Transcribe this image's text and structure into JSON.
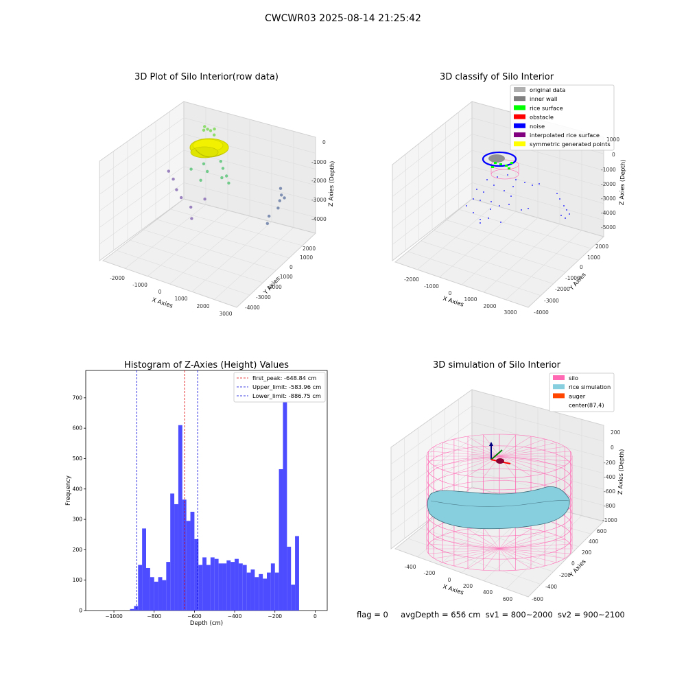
{
  "figure": {
    "suptitle": "CWCWR03 2025-08-14 21:25:42",
    "footer": {
      "flag": "flag = 0",
      "avg_depth": "avgDepth = 656 cm",
      "sv1": "sv1 = 800~2000",
      "sv2": "sv2 = 900~2100"
    }
  },
  "colors": {
    "hist_bar": "#4d4dff",
    "peak_line": "#e00000",
    "limit_line": "#0000dd",
    "silo_wire": "#ff69b4",
    "rice_sim": "#87cedf",
    "auger": "#ff4500",
    "noise": "#0000ff",
    "rice_surface": "#00ff00",
    "inner_wall": "#808080",
    "symmetric": "#ffff00"
  },
  "chart_data": [
    {
      "type": "scatter",
      "projection": "3d",
      "title": "3D Plot of Silo Interior(row data)",
      "xlabel": "X Axies",
      "ylabel": "Y Axies",
      "zlabel": "Z Axies (Depth)",
      "x_ticks": [
        "-2000",
        "-1000",
        "0",
        "1000",
        "2000",
        "3000"
      ],
      "y_ticks": [
        "-4000",
        "-3000",
        "-2000",
        "-1000",
        "0",
        "1000",
        "2000"
      ],
      "z_ticks": [
        "-4000",
        "-3000",
        "-2000",
        "-1000",
        "0"
      ],
      "xlim": [
        -2500,
        3200
      ],
      "ylim": [
        -4200,
        2600
      ],
      "zlim": [
        -4600,
        200
      ],
      "points": [
        {
          "x": -300,
          "y": 1300,
          "z": -250,
          "group": "rice"
        },
        {
          "x": -150,
          "y": 1250,
          "z": -300,
          "group": "rice"
        },
        {
          "x": 0,
          "y": 1200,
          "z": -280,
          "group": "rice"
        },
        {
          "x": 100,
          "y": 1300,
          "z": -200,
          "group": "rice"
        },
        {
          "x": -250,
          "y": 1150,
          "z": -350,
          "group": "rice"
        },
        {
          "x": 200,
          "y": 1100,
          "z": -380,
          "group": "rice"
        },
        {
          "x": 600,
          "y": 700,
          "z": -900,
          "group": "mid"
        },
        {
          "x": 800,
          "y": 500,
          "z": -1300,
          "group": "mid"
        },
        {
          "x": 1000,
          "y": 300,
          "z": -1500,
          "group": "mid"
        },
        {
          "x": 300,
          "y": 800,
          "z": -1200,
          "group": "mid"
        },
        {
          "x": 500,
          "y": 900,
          "z": -1000,
          "group": "mid"
        },
        {
          "x": -200,
          "y": 900,
          "z": -1700,
          "group": "mid"
        },
        {
          "x": 0,
          "y": 700,
          "z": -2000,
          "group": "mid"
        },
        {
          "x": 200,
          "y": 600,
          "z": -2300,
          "group": "mid"
        },
        {
          "x": 1200,
          "y": 200,
          "z": -1800,
          "group": "mid"
        },
        {
          "x": 1400,
          "y": 0,
          "z": -2000,
          "group": "mid"
        },
        {
          "x": 900,
          "y": 400,
          "z": -2200,
          "group": "mid"
        },
        {
          "x": -400,
          "y": 500,
          "z": -2400,
          "group": "mid"
        },
        {
          "x": 100,
          "y": 300,
          "z": -2700,
          "group": "mid"
        },
        {
          "x": -1200,
          "y": 300,
          "z": -2800,
          "group": "low"
        },
        {
          "x": -900,
          "y": 100,
          "z": -3000,
          "group": "low"
        },
        {
          "x": -600,
          "y": -200,
          "z": -3300,
          "group": "low"
        },
        {
          "x": -300,
          "y": -400,
          "z": -3500,
          "group": "low"
        },
        {
          "x": 200,
          "y": -600,
          "z": -3700,
          "group": "low"
        },
        {
          "x": 600,
          "y": -300,
          "z": -3200,
          "group": "low"
        },
        {
          "x": 400,
          "y": -900,
          "z": -4100,
          "group": "low"
        },
        {
          "x": 2500,
          "y": 1800,
          "z": -3000,
          "group": "wall"
        },
        {
          "x": 2700,
          "y": 1500,
          "z": -3100,
          "group": "wall"
        },
        {
          "x": 2800,
          "y": 1200,
          "z": -3200,
          "group": "wall"
        },
        {
          "x": 2900,
          "y": 900,
          "z": -3400,
          "group": "wall"
        },
        {
          "x": 2700,
          "y": 600,
          "z": -3800,
          "group": "wall"
        },
        {
          "x": 2800,
          "y": 300,
          "z": -4000,
          "group": "wall"
        },
        {
          "x": 2600,
          "y": 1900,
          "z": -3600,
          "group": "wall"
        }
      ]
    },
    {
      "type": "scatter",
      "projection": "3d",
      "title": "3D classify of Silo Interior",
      "xlabel": "X Axies",
      "ylabel": "Y Axies",
      "zlabel": "Z Axies (Depth)",
      "x_ticks": [
        "-2000",
        "-1000",
        "0",
        "1000",
        "2000",
        "3000"
      ],
      "y_ticks": [
        "-4000",
        "-3000",
        "-2000",
        "-1000",
        "0",
        "1000",
        "2000"
      ],
      "z_ticks": [
        "-5000",
        "-4000",
        "-3000",
        "-2000",
        "-1000",
        "0",
        "1000"
      ],
      "legend": [
        {
          "label": "original data",
          "color": "#b0b0b0"
        },
        {
          "label": "inner wall",
          "color": "#808080"
        },
        {
          "label": "rice surface",
          "color": "#00ff00"
        },
        {
          "label": "obstacle",
          "color": "#ff0000"
        },
        {
          "label": "noise",
          "color": "#0000ff"
        },
        {
          "label": "interpolated rice surface",
          "color": "#800080"
        },
        {
          "label": "symmetric generated points",
          "color": "#ffff00"
        }
      ],
      "legend_loc": "upper right"
    },
    {
      "type": "bar",
      "title": "Histogram of Z-Axies (Height) Values",
      "xlabel": "Depth (cm)",
      "ylabel": "Frequency",
      "xlim": [
        -1140,
        60
      ],
      "ylim": [
        0,
        790
      ],
      "x_ticks": [
        -1000,
        -800,
        -600,
        -400,
        -200,
        0
      ],
      "y_ticks": [
        0,
        100,
        200,
        300,
        400,
        500,
        600,
        700
      ],
      "bin_width": 20,
      "bin_starts": [
        -920,
        -900,
        -880,
        -860,
        -840,
        -820,
        -800,
        -780,
        -760,
        -740,
        -720,
        -700,
        -680,
        -660,
        -640,
        -620,
        -600,
        -580,
        -560,
        -540,
        -520,
        -500,
        -480,
        -460,
        -440,
        -420,
        -400,
        -380,
        -360,
        -340,
        -320,
        -300,
        -280,
        -260,
        -240,
        -220,
        -200,
        -180,
        -160,
        -140,
        -120,
        -100,
        -80,
        -60,
        -40,
        -20
      ],
      "values": [
        5,
        15,
        150,
        270,
        140,
        110,
        95,
        110,
        100,
        160,
        385,
        350,
        610,
        365,
        295,
        325,
        235,
        150,
        175,
        150,
        175,
        170,
        155,
        155,
        165,
        160,
        170,
        155,
        150,
        125,
        135,
        110,
        120,
        105,
        125,
        155,
        125,
        465,
        750,
        210,
        85,
        245,
        0,
        0,
        0,
        0
      ],
      "vlines": [
        {
          "x": -648.84,
          "label": "first_peak: -648.84 cm",
          "color": "#e00000"
        },
        {
          "x": -583.96,
          "label": "Upper_limit: -583.96 cm",
          "color": "#0000dd"
        },
        {
          "x": -886.75,
          "label": "Lower_limit: -886.75 cm",
          "color": "#0000dd"
        }
      ],
      "legend_loc": "upper right"
    },
    {
      "type": "surface",
      "projection": "3d",
      "title": "3D simulation of Silo Interior",
      "xlabel": "X Axies",
      "ylabel": "Y Axies",
      "zlabel": "Z Axies (Depth)",
      "x_ticks": [
        "-400",
        "-200",
        "0",
        "200",
        "400",
        "600"
      ],
      "y_ticks": [
        "-600",
        "-400",
        "-200",
        "0",
        "200",
        "400",
        "600"
      ],
      "z_ticks": [
        "-1000",
        "-800",
        "-600",
        "-400",
        "-200",
        "0",
        "200"
      ],
      "legend": [
        {
          "label": "silo",
          "color": "#ff69b4"
        },
        {
          "label": "rice simulation",
          "color": "#87cedf"
        },
        {
          "label": "auger",
          "color": "#ff4500"
        },
        {
          "label": "center(87,4)",
          "color": ""
        }
      ],
      "legend_loc": "upper right"
    }
  ]
}
